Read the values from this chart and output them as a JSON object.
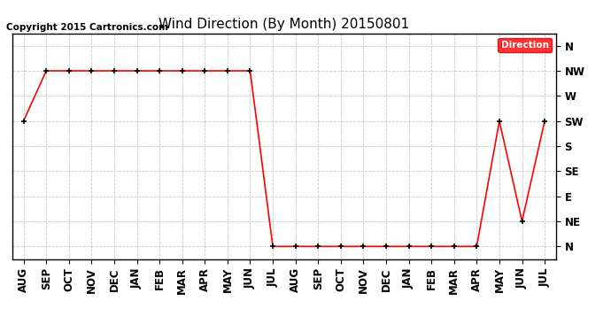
{
  "title": "Wind Direction (By Month) 20150801",
  "copyright_text": "Copyright 2015 Cartronics.com",
  "legend_label": "Direction",
  "legend_color": "#ff0000",
  "legend_text_color": "#ffffff",
  "background_color": "#ffffff",
  "grid_color": "#bbbbbb",
  "line_color": "#ff0000",
  "marker_color": "#000000",
  "x_labels": [
    "AUG",
    "SEP",
    "OCT",
    "NOV",
    "DEC",
    "JAN",
    "FEB",
    "MAR",
    "APR",
    "MAY",
    "JUN",
    "JUL",
    "AUG",
    "SEP",
    "OCT",
    "NOV",
    "DEC",
    "JAN",
    "FEB",
    "MAR",
    "APR",
    "MAY",
    "JUN",
    "JUL"
  ],
  "y_labels": [
    "N",
    "NE",
    "E",
    "SE",
    "S",
    "SW",
    "W",
    "NW",
    "N"
  ],
  "y_values": [
    0,
    1,
    2,
    3,
    4,
    5,
    6,
    7,
    8
  ],
  "data_points": [
    5,
    7,
    7,
    7,
    7,
    7,
    7,
    7,
    7,
    7,
    7,
    0,
    0,
    0,
    0,
    0,
    0,
    0,
    0,
    0,
    0,
    5,
    1,
    5
  ],
  "title_fontsize": 11,
  "copyright_fontsize": 7.5,
  "axis_label_fontsize": 8.5
}
